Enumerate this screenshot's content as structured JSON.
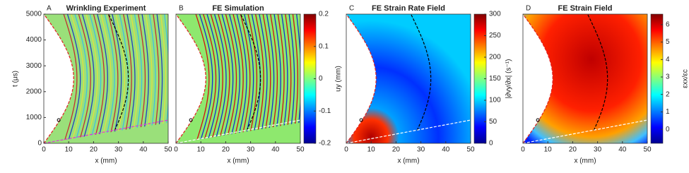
{
  "chart_data": [
    {
      "type": "heatmap",
      "panel": "A",
      "title": "Wrinkling Experiment",
      "xlabel": "x (mm)",
      "ylabel": "t (μs)",
      "xlim": [
        0,
        50
      ],
      "xticks": [
        0,
        10,
        20,
        30,
        40,
        50
      ],
      "ylim": [
        0,
        5000
      ],
      "yticks": [
        0,
        1000,
        2000,
        3000,
        4000,
        5000
      ]
    },
    {
      "type": "heatmap",
      "panel": "B",
      "title": "FE Simulation",
      "xlabel": "x (mm)",
      "xlim": [
        0,
        50
      ],
      "xticks": [
        0,
        10,
        20,
        30,
        40,
        50
      ],
      "ylim": [
        0,
        5000
      ],
      "colorbar_label": "uy (mm)",
      "clim": [
        -0.2,
        0.2
      ],
      "cticks": [
        0.2,
        0.1,
        0,
        -0.1,
        -0.2
      ]
    },
    {
      "type": "heatmap",
      "panel": "C",
      "title": "FE Strain Rate Field",
      "xlabel": "x (mm)",
      "xlim": [
        0,
        50
      ],
      "xticks": [
        0,
        10,
        20,
        30,
        40,
        50
      ],
      "ylim": [
        0,
        5000
      ],
      "colorbar_label": "|∂vy/∂x| (s⁻¹)",
      "clim": [
        0,
        300
      ],
      "cticks": [
        300,
        250,
        200,
        150,
        100,
        50,
        0
      ]
    },
    {
      "type": "heatmap",
      "panel": "D",
      "title": "FE Strain Field",
      "xlabel": "x (mm)",
      "xlim": [
        0,
        50
      ],
      "xticks": [
        0,
        10,
        20,
        30,
        40,
        50
      ],
      "ylim": [
        0,
        5000
      ],
      "colorbar_label": "εxx/εc",
      "clim": [
        -0.8,
        6.6
      ],
      "cticks": [
        6,
        5,
        4,
        3,
        2,
        1,
        0
      ]
    }
  ]
}
